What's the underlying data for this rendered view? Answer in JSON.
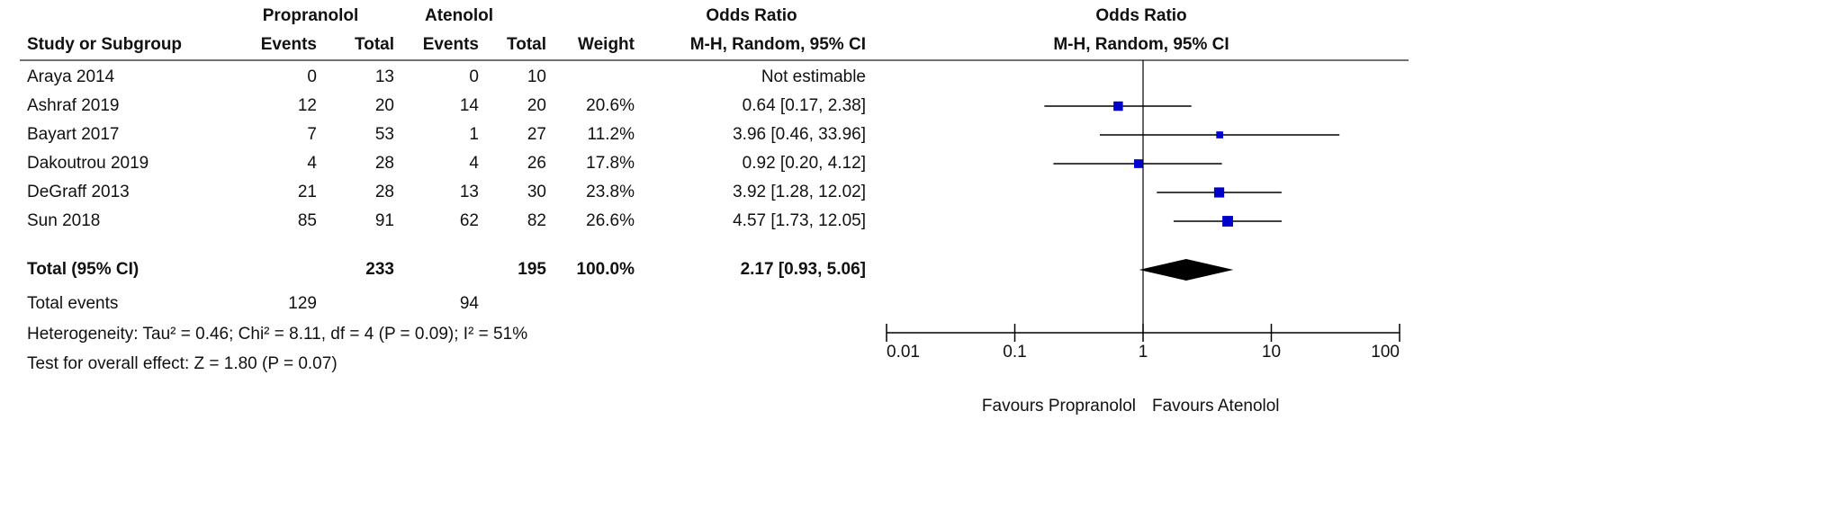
{
  "chart_data": {
    "type": "forest",
    "groups": [
      "Propranolol",
      "Atenolol"
    ],
    "columns": [
      "Study or Subgroup",
      "Events",
      "Total",
      "Events",
      "Total",
      "Weight",
      "M-H, Random, 95% CI"
    ],
    "effect_title": "Odds Ratio",
    "studies": [
      {
        "name": "Araya 2014",
        "events_a": 0,
        "total_a": 13,
        "events_b": 0,
        "total_b": 10,
        "weight": null,
        "or": null,
        "lower": null,
        "upper": null,
        "or_label": "Not estimable"
      },
      {
        "name": "Ashraf 2019",
        "events_a": 12,
        "total_a": 20,
        "events_b": 14,
        "total_b": 20,
        "weight": 20.6,
        "weight_label": "20.6%",
        "or": 0.64,
        "lower": 0.17,
        "upper": 2.38,
        "or_label": "0.64 [0.17, 2.38]"
      },
      {
        "name": "Bayart 2017",
        "events_a": 7,
        "total_a": 53,
        "events_b": 1,
        "total_b": 27,
        "weight": 11.2,
        "weight_label": "11.2%",
        "or": 3.96,
        "lower": 0.46,
        "upper": 33.96,
        "or_label": "3.96 [0.46, 33.96]"
      },
      {
        "name": "Dakoutrou 2019",
        "events_a": 4,
        "total_a": 28,
        "events_b": 4,
        "total_b": 26,
        "weight": 17.8,
        "weight_label": "17.8%",
        "or": 0.92,
        "lower": 0.2,
        "upper": 4.12,
        "or_label": "0.92 [0.20, 4.12]"
      },
      {
        "name": "DeGraff 2013",
        "events_a": 21,
        "total_a": 28,
        "events_b": 13,
        "total_b": 30,
        "weight": 23.8,
        "weight_label": "23.8%",
        "or": 3.92,
        "lower": 1.28,
        "upper": 12.02,
        "or_label": "3.92 [1.28, 12.02]"
      },
      {
        "name": "Sun 2018",
        "events_a": 85,
        "total_a": 91,
        "events_b": 62,
        "total_b": 82,
        "weight": 26.6,
        "weight_label": "26.6%",
        "or": 4.57,
        "lower": 1.73,
        "upper": 12.05,
        "or_label": "4.57 [1.73, 12.05]"
      }
    ],
    "total": {
      "name": "Total (95% CI)",
      "total_a": 233,
      "total_b": 195,
      "weight": 100.0,
      "weight_label": "100.0%",
      "or": 2.17,
      "lower": 0.93,
      "upper": 5.06,
      "or_label": "2.17 [0.93, 5.06]"
    },
    "total_events": {
      "name": "Total events",
      "a": 129,
      "b": 94
    },
    "heterogeneity": "Heterogeneity: Tau² = 0.46; Chi² = 8.11, df = 4 (P = 0.09); I² = 51%",
    "overall_effect": "Test for overall effect: Z = 1.80 (P = 0.07)",
    "xlim": [
      0.01,
      100
    ],
    "xticks": [
      0.01,
      0.1,
      1,
      10,
      100
    ],
    "log_x": true,
    "favours": [
      "Favours Propranolol",
      "Favours Atenolol"
    ],
    "color": "#0000cc"
  }
}
